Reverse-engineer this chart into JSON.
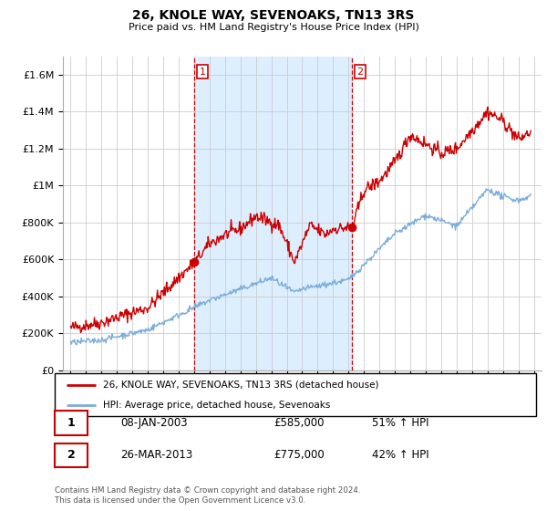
{
  "title": "26, KNOLE WAY, SEVENOAKS, TN13 3RS",
  "subtitle": "Price paid vs. HM Land Registry's House Price Index (HPI)",
  "legend_line1": "26, KNOLE WAY, SEVENOAKS, TN13 3RS (detached house)",
  "legend_line2": "HPI: Average price, detached house, Sevenoaks",
  "annotation1_label": "1",
  "annotation1_date": "08-JAN-2003",
  "annotation1_price": "£585,000",
  "annotation1_pct": "51% ↑ HPI",
  "annotation2_label": "2",
  "annotation2_date": "26-MAR-2013",
  "annotation2_price": "£775,000",
  "annotation2_pct": "42% ↑ HPI",
  "footer": "Contains HM Land Registry data © Crown copyright and database right 2024.\nThis data is licensed under the Open Government Licence v3.0.",
  "price_color": "#cc0000",
  "hpi_color": "#7aadda",
  "shade_color": "#ddeeff",
  "background_color": "#ffffff",
  "plot_bg_color": "#ffffff",
  "ylim": [
    0,
    1700000
  ],
  "yticks": [
    0,
    200000,
    400000,
    600000,
    800000,
    1000000,
    1200000,
    1400000,
    1600000
  ],
  "ytick_labels": [
    "£0",
    "£200K",
    "£400K",
    "£600K",
    "£800K",
    "£1M",
    "£1.2M",
    "£1.4M",
    "£1.6M"
  ],
  "sale1_year": 2003.03,
  "sale1_price": 585000,
  "sale2_year": 2013.23,
  "sale2_price": 775000,
  "vline1_year": 2003.03,
  "vline2_year": 2013.23,
  "xstart": 1995,
  "xend": 2025
}
